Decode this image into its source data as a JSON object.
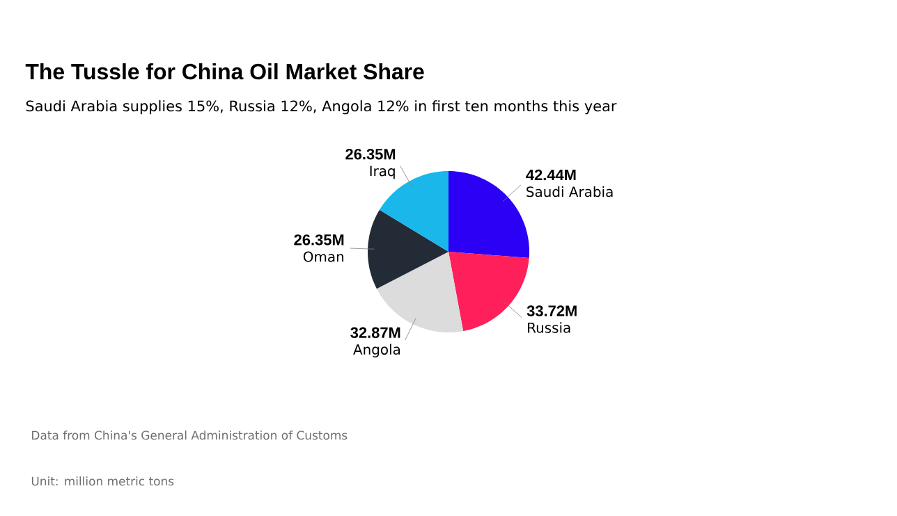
{
  "chart_data": {
    "type": "pie",
    "title": "The Tussle for China Oil Market Share",
    "subtitle": "Saudi Arabia supplies 15%, Russia 12%, Angola 12% in first ten months this year",
    "categories": [
      "Saudi Arabia",
      "Russia",
      "Angola",
      "Oman",
      "Iraq"
    ],
    "values": [
      42.44,
      33.72,
      32.87,
      26.35,
      26.35
    ],
    "value_labels": [
      "42.44M",
      "33.72M",
      "32.87M",
      "26.35M",
      "26.35M"
    ],
    "colors": [
      "#2b00f5",
      "#ff1f5a",
      "#dcdcdc",
      "#222b36",
      "#1ab7ea"
    ],
    "annotations": [
      "Data from China's General Administration of Customs",
      "Unit: million metric tons"
    ]
  }
}
